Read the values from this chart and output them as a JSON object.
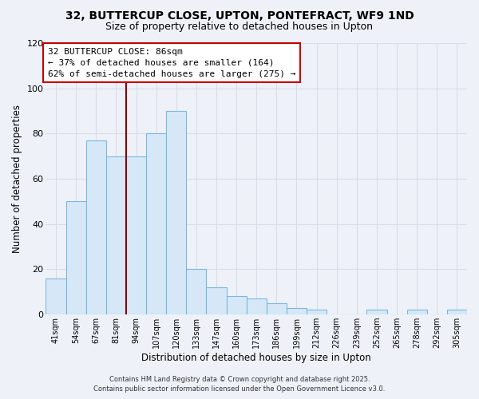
{
  "title": "32, BUTTERCUP CLOSE, UPTON, PONTEFRACT, WF9 1ND",
  "subtitle": "Size of property relative to detached houses in Upton",
  "xlabel": "Distribution of detached houses by size in Upton",
  "ylabel": "Number of detached properties",
  "categories": [
    "41sqm",
    "54sqm",
    "67sqm",
    "81sqm",
    "94sqm",
    "107sqm",
    "120sqm",
    "133sqm",
    "147sqm",
    "160sqm",
    "173sqm",
    "186sqm",
    "199sqm",
    "212sqm",
    "226sqm",
    "239sqm",
    "252sqm",
    "265sqm",
    "278sqm",
    "292sqm",
    "305sqm"
  ],
  "values": [
    16,
    50,
    77,
    70,
    70,
    80,
    90,
    20,
    12,
    8,
    7,
    5,
    3,
    2,
    0,
    0,
    2,
    0,
    2,
    0,
    2
  ],
  "bar_color": "#d6e8f7",
  "bar_edge_color": "#7ab8e0",
  "vline_x_index": 3.5,
  "vline_color": "#8b0000",
  "annotation_title": "32 BUTTERCUP CLOSE: 86sqm",
  "annotation_line1": "← 37% of detached houses are smaller (164)",
  "annotation_line2": "62% of semi-detached houses are larger (275) →",
  "annotation_box_color": "#ffffff",
  "annotation_box_edge": "#cc0000",
  "ylim": [
    0,
    120
  ],
  "yticks": [
    0,
    20,
    40,
    60,
    80,
    100,
    120
  ],
  "bg_color": "#eef2f8",
  "grid_color": "#d8dde8",
  "footer1": "Contains HM Land Registry data © Crown copyright and database right 2025.",
  "footer2": "Contains public sector information licensed under the Open Government Licence v3.0.",
  "title_fontsize": 10,
  "subtitle_fontsize": 9,
  "annotation_fontsize": 8
}
